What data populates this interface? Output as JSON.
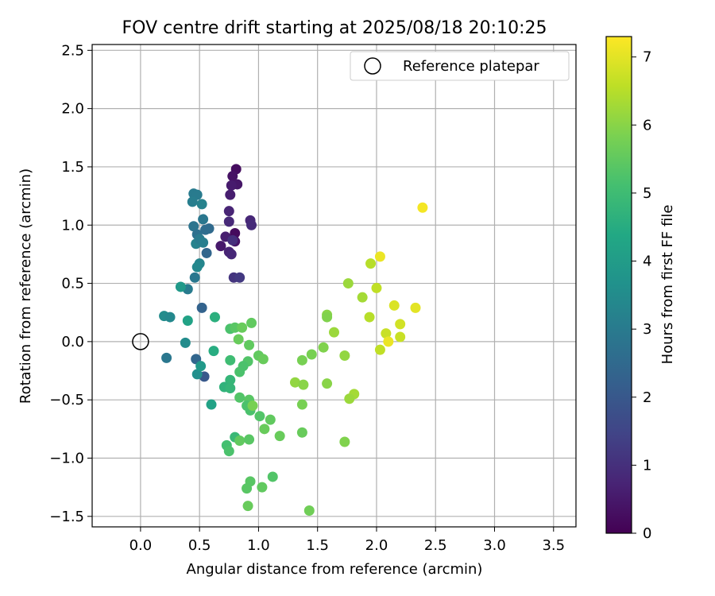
{
  "chart_data": {
    "type": "scatter",
    "title": "FOV centre drift starting at 2025/08/18 20:10:25",
    "xlabel": "Angular distance from reference (arcmin)",
    "ylabel": "Rotation from reference (arcmin)",
    "xlim": [
      -0.41,
      3.69
    ],
    "ylim": [
      -1.59,
      2.55
    ],
    "xticks": [
      "0.0",
      "0.5",
      "1.0",
      "1.5",
      "2.0",
      "2.5",
      "3.0",
      "3.5"
    ],
    "xtick_values": [
      0,
      0.5,
      1,
      1.5,
      2,
      2.5,
      3,
      3.5
    ],
    "yticks": [
      "−1.5",
      "−1.0",
      "−0.5",
      "0.0",
      "0.5",
      "1.0",
      "1.5",
      "2.0",
      "2.5"
    ],
    "ytick_values": [
      -1.5,
      -1,
      -0.5,
      0,
      0.5,
      1,
      1.5,
      2,
      2.5
    ],
    "grid": true,
    "legend": {
      "position": "top-right",
      "entries": [
        "Reference platepar"
      ]
    },
    "reference_point": {
      "x": 0.0,
      "y": 0.0
    },
    "colorbar": {
      "label": "Hours from first FF file",
      "range": [
        0,
        7.3
      ],
      "ticks": [
        "0",
        "1",
        "2",
        "3",
        "4",
        "5",
        "6",
        "7"
      ],
      "tick_values": [
        0,
        1,
        2,
        3,
        4,
        5,
        6,
        7
      ],
      "colormap": "viridis"
    },
    "points": [
      {
        "x": 0.81,
        "y": 1.48,
        "c": 0.25
      },
      {
        "x": 0.78,
        "y": 1.42,
        "c": 0.35
      },
      {
        "x": 0.82,
        "y": 1.35,
        "c": 0.45
      },
      {
        "x": 0.77,
        "y": 1.34,
        "c": 0.55
      },
      {
        "x": 0.76,
        "y": 1.26,
        "c": 0.6
      },
      {
        "x": 0.75,
        "y": 1.12,
        "c": 0.75
      },
      {
        "x": 0.93,
        "y": 1.04,
        "c": 0.8
      },
      {
        "x": 0.75,
        "y": 1.03,
        "c": 0.85
      },
      {
        "x": 0.94,
        "y": 1.0,
        "c": 0.9
      },
      {
        "x": 0.72,
        "y": 0.9,
        "c": 0.6
      },
      {
        "x": 0.8,
        "y": 0.93,
        "c": 0.2
      },
      {
        "x": 0.8,
        "y": 0.86,
        "c": 0.4
      },
      {
        "x": 0.68,
        "y": 0.82,
        "c": 0.5
      },
      {
        "x": 0.75,
        "y": 0.77,
        "c": 0.7
      },
      {
        "x": 0.77,
        "y": 0.75,
        "c": 0.8
      },
      {
        "x": 0.79,
        "y": 0.55,
        "c": 1.1
      },
      {
        "x": 0.84,
        "y": 0.55,
        "c": 1.2
      },
      {
        "x": 0.78,
        "y": 0.87,
        "c": 1.0
      },
      {
        "x": 0.45,
        "y": 1.27,
        "c": 3.0
      },
      {
        "x": 0.48,
        "y": 1.26,
        "c": 3.0
      },
      {
        "x": 0.44,
        "y": 1.2,
        "c": 3.1
      },
      {
        "x": 0.52,
        "y": 1.18,
        "c": 3.2
      },
      {
        "x": 0.45,
        "y": 0.99,
        "c": 2.8
      },
      {
        "x": 0.53,
        "y": 1.05,
        "c": 2.9
      },
      {
        "x": 0.58,
        "y": 0.97,
        "c": 2.5
      },
      {
        "x": 0.55,
        "y": 0.96,
        "c": 2.6
      },
      {
        "x": 0.48,
        "y": 0.92,
        "c": 2.7
      },
      {
        "x": 0.47,
        "y": 0.84,
        "c": 3.2
      },
      {
        "x": 0.5,
        "y": 0.88,
        "c": 3.0
      },
      {
        "x": 0.53,
        "y": 0.85,
        "c": 3.1
      },
      {
        "x": 0.56,
        "y": 0.76,
        "c": 2.4
      },
      {
        "x": 0.5,
        "y": 0.67,
        "c": 3.3
      },
      {
        "x": 0.48,
        "y": 0.64,
        "c": 3.4
      },
      {
        "x": 0.46,
        "y": 0.55,
        "c": 2.9
      },
      {
        "x": 0.4,
        "y": 0.45,
        "c": 3.0
      },
      {
        "x": 0.34,
        "y": 0.47,
        "c": 3.9
      },
      {
        "x": 0.52,
        "y": 0.29,
        "c": 2.3
      },
      {
        "x": 0.2,
        "y": 0.22,
        "c": 3.5
      },
      {
        "x": 0.25,
        "y": 0.21,
        "c": 3.4
      },
      {
        "x": 0.4,
        "y": 0.18,
        "c": 4.2
      },
      {
        "x": 0.38,
        "y": -0.01,
        "c": 3.5
      },
      {
        "x": 0.22,
        "y": -0.14,
        "c": 2.9
      },
      {
        "x": 0.47,
        "y": -0.15,
        "c": 2.4
      },
      {
        "x": 0.54,
        "y": -0.3,
        "c": 2.0
      },
      {
        "x": 0.48,
        "y": -0.28,
        "c": 3.6
      },
      {
        "x": 0.51,
        "y": -0.21,
        "c": 3.9
      },
      {
        "x": 0.6,
        "y": -0.54,
        "c": 4.2
      },
      {
        "x": 0.63,
        "y": 0.21,
        "c": 4.6
      },
      {
        "x": 0.62,
        "y": -0.08,
        "c": 4.5
      },
      {
        "x": 0.76,
        "y": 0.11,
        "c": 5.2
      },
      {
        "x": 0.8,
        "y": 0.12,
        "c": 5.4
      },
      {
        "x": 0.86,
        "y": 0.12,
        "c": 5.6
      },
      {
        "x": 0.94,
        "y": 0.16,
        "c": 5.5
      },
      {
        "x": 0.83,
        "y": 0.02,
        "c": 5.6
      },
      {
        "x": 0.92,
        "y": -0.03,
        "c": 5.5
      },
      {
        "x": 1.0,
        "y": -0.12,
        "c": 5.5
      },
      {
        "x": 1.04,
        "y": -0.15,
        "c": 5.6
      },
      {
        "x": 0.76,
        "y": -0.16,
        "c": 5.0
      },
      {
        "x": 0.91,
        "y": -0.17,
        "c": 5.3
      },
      {
        "x": 0.87,
        "y": -0.21,
        "c": 5.2
      },
      {
        "x": 0.84,
        "y": -0.26,
        "c": 5.2
      },
      {
        "x": 0.76,
        "y": -0.33,
        "c": 4.8
      },
      {
        "x": 0.71,
        "y": -0.39,
        "c": 4.7
      },
      {
        "x": 0.76,
        "y": -0.4,
        "c": 4.8
      },
      {
        "x": 0.84,
        "y": -0.48,
        "c": 5.3
      },
      {
        "x": 0.92,
        "y": -0.5,
        "c": 5.4
      },
      {
        "x": 0.9,
        "y": -0.55,
        "c": 5.2
      },
      {
        "x": 0.93,
        "y": -0.59,
        "c": 5.2
      },
      {
        "x": 0.95,
        "y": -0.55,
        "c": 5.8
      },
      {
        "x": 1.01,
        "y": -0.64,
        "c": 5.3
      },
      {
        "x": 1.05,
        "y": -0.75,
        "c": 5.6
      },
      {
        "x": 1.1,
        "y": -0.67,
        "c": 5.5
      },
      {
        "x": 1.18,
        "y": -0.81,
        "c": 5.6
      },
      {
        "x": 0.8,
        "y": -0.82,
        "c": 4.9
      },
      {
        "x": 0.84,
        "y": -0.85,
        "c": 5.5
      },
      {
        "x": 0.92,
        "y": -0.84,
        "c": 5.4
      },
      {
        "x": 0.73,
        "y": -0.89,
        "c": 5.1
      },
      {
        "x": 0.75,
        "y": -0.94,
        "c": 5.2
      },
      {
        "x": 0.93,
        "y": -1.2,
        "c": 5.4
      },
      {
        "x": 1.12,
        "y": -1.16,
        "c": 5.3
      },
      {
        "x": 0.9,
        "y": -1.26,
        "c": 5.4
      },
      {
        "x": 1.03,
        "y": -1.25,
        "c": 5.5
      },
      {
        "x": 0.91,
        "y": -1.41,
        "c": 5.6
      },
      {
        "x": 1.43,
        "y": -1.45,
        "c": 5.7
      },
      {
        "x": 1.37,
        "y": -0.16,
        "c": 5.8
      },
      {
        "x": 1.45,
        "y": -0.11,
        "c": 5.8
      },
      {
        "x": 1.55,
        "y": -0.05,
        "c": 5.9
      },
      {
        "x": 1.31,
        "y": -0.35,
        "c": 6.1
      },
      {
        "x": 1.38,
        "y": -0.37,
        "c": 6.0
      },
      {
        "x": 1.37,
        "y": -0.54,
        "c": 5.8
      },
      {
        "x": 1.37,
        "y": -0.78,
        "c": 5.6
      },
      {
        "x": 1.58,
        "y": 0.23,
        "c": 6.0
      },
      {
        "x": 1.58,
        "y": 0.21,
        "c": 5.9
      },
      {
        "x": 1.64,
        "y": 0.08,
        "c": 6.2
      },
      {
        "x": 1.58,
        "y": -0.36,
        "c": 6.0
      },
      {
        "x": 1.73,
        "y": -0.12,
        "c": 6.1
      },
      {
        "x": 1.73,
        "y": -0.86,
        "c": 5.9
      },
      {
        "x": 1.76,
        "y": 0.5,
        "c": 6.2
      },
      {
        "x": 1.88,
        "y": 0.38,
        "c": 6.3
      },
      {
        "x": 1.81,
        "y": -0.45,
        "c": 6.3
      },
      {
        "x": 1.77,
        "y": -0.49,
        "c": 6.2
      },
      {
        "x": 1.95,
        "y": 0.67,
        "c": 6.5
      },
      {
        "x": 2.0,
        "y": 0.46,
        "c": 6.6
      },
      {
        "x": 1.94,
        "y": 0.21,
        "c": 6.5
      },
      {
        "x": 2.03,
        "y": 0.73,
        "c": 7.1
      },
      {
        "x": 2.03,
        "y": -0.07,
        "c": 6.6
      },
      {
        "x": 2.08,
        "y": 0.07,
        "c": 6.7
      },
      {
        "x": 2.1,
        "y": 0.0,
        "c": 7.1
      },
      {
        "x": 2.15,
        "y": 0.31,
        "c": 6.9
      },
      {
        "x": 2.2,
        "y": 0.15,
        "c": 6.8
      },
      {
        "x": 2.2,
        "y": 0.04,
        "c": 6.7
      },
      {
        "x": 2.33,
        "y": 0.29,
        "c": 7.0
      },
      {
        "x": 2.39,
        "y": 1.15,
        "c": 7.2
      }
    ]
  }
}
